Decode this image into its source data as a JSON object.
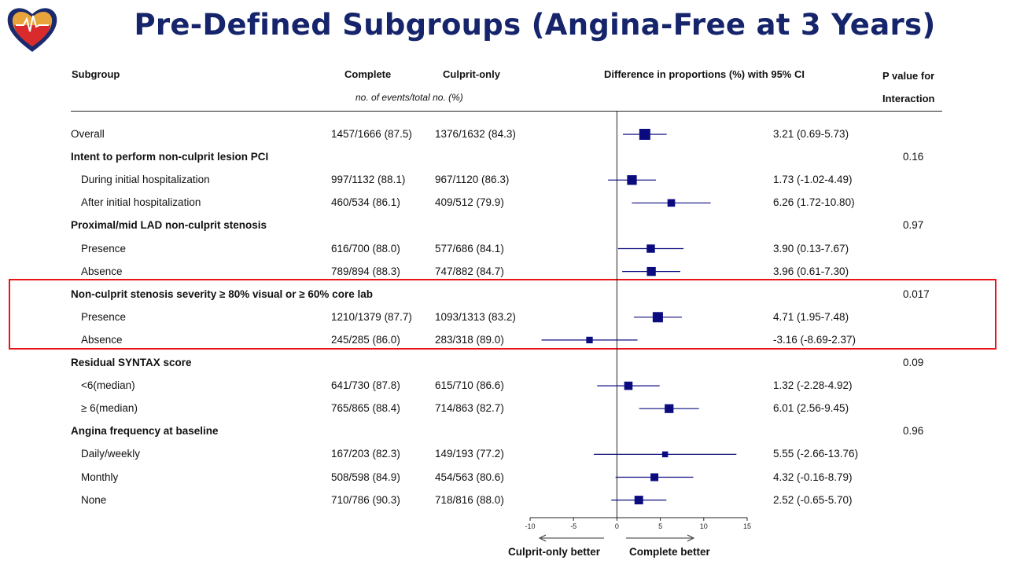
{
  "title": "Pre-Defined Subgroups (Angina-Free at 3 Years)",
  "logo_icon": "heart-ecg-logo-icon",
  "colors": {
    "title": "#15246b",
    "marker": "#0b0b80",
    "highlight_box": "#e8141b"
  },
  "headers": {
    "subgroup": "Subgroup",
    "complete": "Complete",
    "culprit_only": "Culprit-only",
    "events_note": "no. of events/total no. (%)",
    "difference": "Difference in proportions (%) with 95% CI",
    "p_value_line1": "P value for",
    "p_value_line2": "Interaction"
  },
  "rows": [
    {
      "label": "Overall",
      "type": "data",
      "complete": "1457/1666 (87.5)",
      "culprit": "1376/1632 (84.3)",
      "ci_text": "3.21 (0.69-5.73)",
      "p": ""
    },
    {
      "label": "Intent to perform non-culprit lesion PCI",
      "type": "group",
      "complete": "",
      "culprit": "",
      "ci_text": "",
      "p": "0.16"
    },
    {
      "label": "During initial hospitalization",
      "type": "sub",
      "complete": "997/1132 (88.1)",
      "culprit": "967/1120 (86.3)",
      "ci_text": "1.73 (-1.02-4.49)",
      "p": ""
    },
    {
      "label": "After initial hospitalization",
      "type": "sub",
      "complete": "460/534 (86.1)",
      "culprit": "409/512 (79.9)",
      "ci_text": "6.26 (1.72-10.80)",
      "p": ""
    },
    {
      "label": "Proximal/mid LAD non-culprit stenosis",
      "type": "group",
      "complete": "",
      "culprit": "",
      "ci_text": "",
      "p": "0.97"
    },
    {
      "label": "Presence",
      "type": "sub",
      "complete": "616/700 (88.0)",
      "culprit": "577/686 (84.1)",
      "ci_text": "3.90 (0.13-7.67)",
      "p": ""
    },
    {
      "label": "Absence",
      "type": "sub",
      "complete": "789/894 (88.3)",
      "culprit": "747/882 (84.7)",
      "ci_text": "3.96 (0.61-7.30)",
      "p": ""
    },
    {
      "label": "Non-culprit stenosis severity ≥ 80% visual or ≥ 60% core lab",
      "type": "group",
      "complete": "",
      "culprit": "",
      "ci_text": "",
      "p": "0.017"
    },
    {
      "label": "Presence",
      "type": "sub",
      "complete": "1210/1379 (87.7)",
      "culprit": "1093/1313 (83.2)",
      "ci_text": "4.71 (1.95-7.48)",
      "p": ""
    },
    {
      "label": "Absence",
      "type": "sub",
      "complete": "245/285 (86.0)",
      "culprit": "283/318 (89.0)",
      "ci_text": "-3.16 (-8.69-2.37)",
      "p": ""
    },
    {
      "label": "Residual SYNTAX score",
      "type": "group",
      "complete": "",
      "culprit": "",
      "ci_text": "",
      "p": "0.09"
    },
    {
      "label": "<6(median)",
      "type": "sub",
      "complete": "641/730 (87.8)",
      "culprit": "615/710 (86.6)",
      "ci_text": "1.32 (-2.28-4.92)",
      "p": ""
    },
    {
      "label": "≥ 6(median)",
      "type": "sub",
      "complete": "765/865 (88.4)",
      "culprit": "714/863 (82.7)",
      "ci_text": "6.01 (2.56-9.45)",
      "p": ""
    },
    {
      "label": "Angina frequency at baseline",
      "type": "group",
      "complete": "",
      "culprit": "",
      "ci_text": "",
      "p": "0.96"
    },
    {
      "label": "Daily/weekly",
      "type": "sub",
      "complete": "167/203 (82.3)",
      "culprit": "149/193 (77.2)",
      "ci_text": "5.55 (-2.66-13.76)",
      "p": ""
    },
    {
      "label": "Monthly",
      "type": "sub",
      "complete": "508/598 (84.9)",
      "culprit": "454/563 (80.6)",
      "ci_text": "4.32 (-0.16-8.79)",
      "p": ""
    },
    {
      "label": "None",
      "type": "sub",
      "complete": "710/786 (90.3)",
      "culprit": "718/816 (88.0)",
      "ci_text": "2.52 (-0.65-5.70)",
      "p": ""
    }
  ],
  "chart_data": {
    "type": "forest",
    "xlim": [
      -10,
      15
    ],
    "xticks": [
      "-10",
      "-5",
      "0",
      "5",
      "10",
      "15"
    ],
    "reference_line": 0,
    "left_arrow_label": "Culprit-only better",
    "right_arrow_label": "Complete better",
    "points": [
      {
        "row": 0,
        "est": 3.21,
        "lo": 0.69,
        "hi": 5.73,
        "n": 3298
      },
      {
        "row": 2,
        "est": 1.73,
        "lo": -1.02,
        "hi": 4.49,
        "n": 2252
      },
      {
        "row": 3,
        "est": 6.26,
        "lo": 1.72,
        "hi": 10.8,
        "n": 1046
      },
      {
        "row": 5,
        "est": 3.9,
        "lo": 0.13,
        "hi": 7.67,
        "n": 1386
      },
      {
        "row": 6,
        "est": 3.96,
        "lo": 0.61,
        "hi": 7.3,
        "n": 1776
      },
      {
        "row": 8,
        "est": 4.71,
        "lo": 1.95,
        "hi": 7.48,
        "n": 2692
      },
      {
        "row": 9,
        "est": -3.16,
        "lo": -8.69,
        "hi": 2.37,
        "n": 603
      },
      {
        "row": 11,
        "est": 1.32,
        "lo": -2.28,
        "hi": 4.92,
        "n": 1440
      },
      {
        "row": 12,
        "est": 6.01,
        "lo": 2.56,
        "hi": 9.45,
        "n": 1728
      },
      {
        "row": 14,
        "est": 5.55,
        "lo": -2.66,
        "hi": 13.76,
        "n": 396
      },
      {
        "row": 15,
        "est": 4.32,
        "lo": -0.16,
        "hi": 8.79,
        "n": 1161
      },
      {
        "row": 16,
        "est": 2.52,
        "lo": -0.65,
        "hi": 5.7,
        "n": 1602
      }
    ]
  }
}
